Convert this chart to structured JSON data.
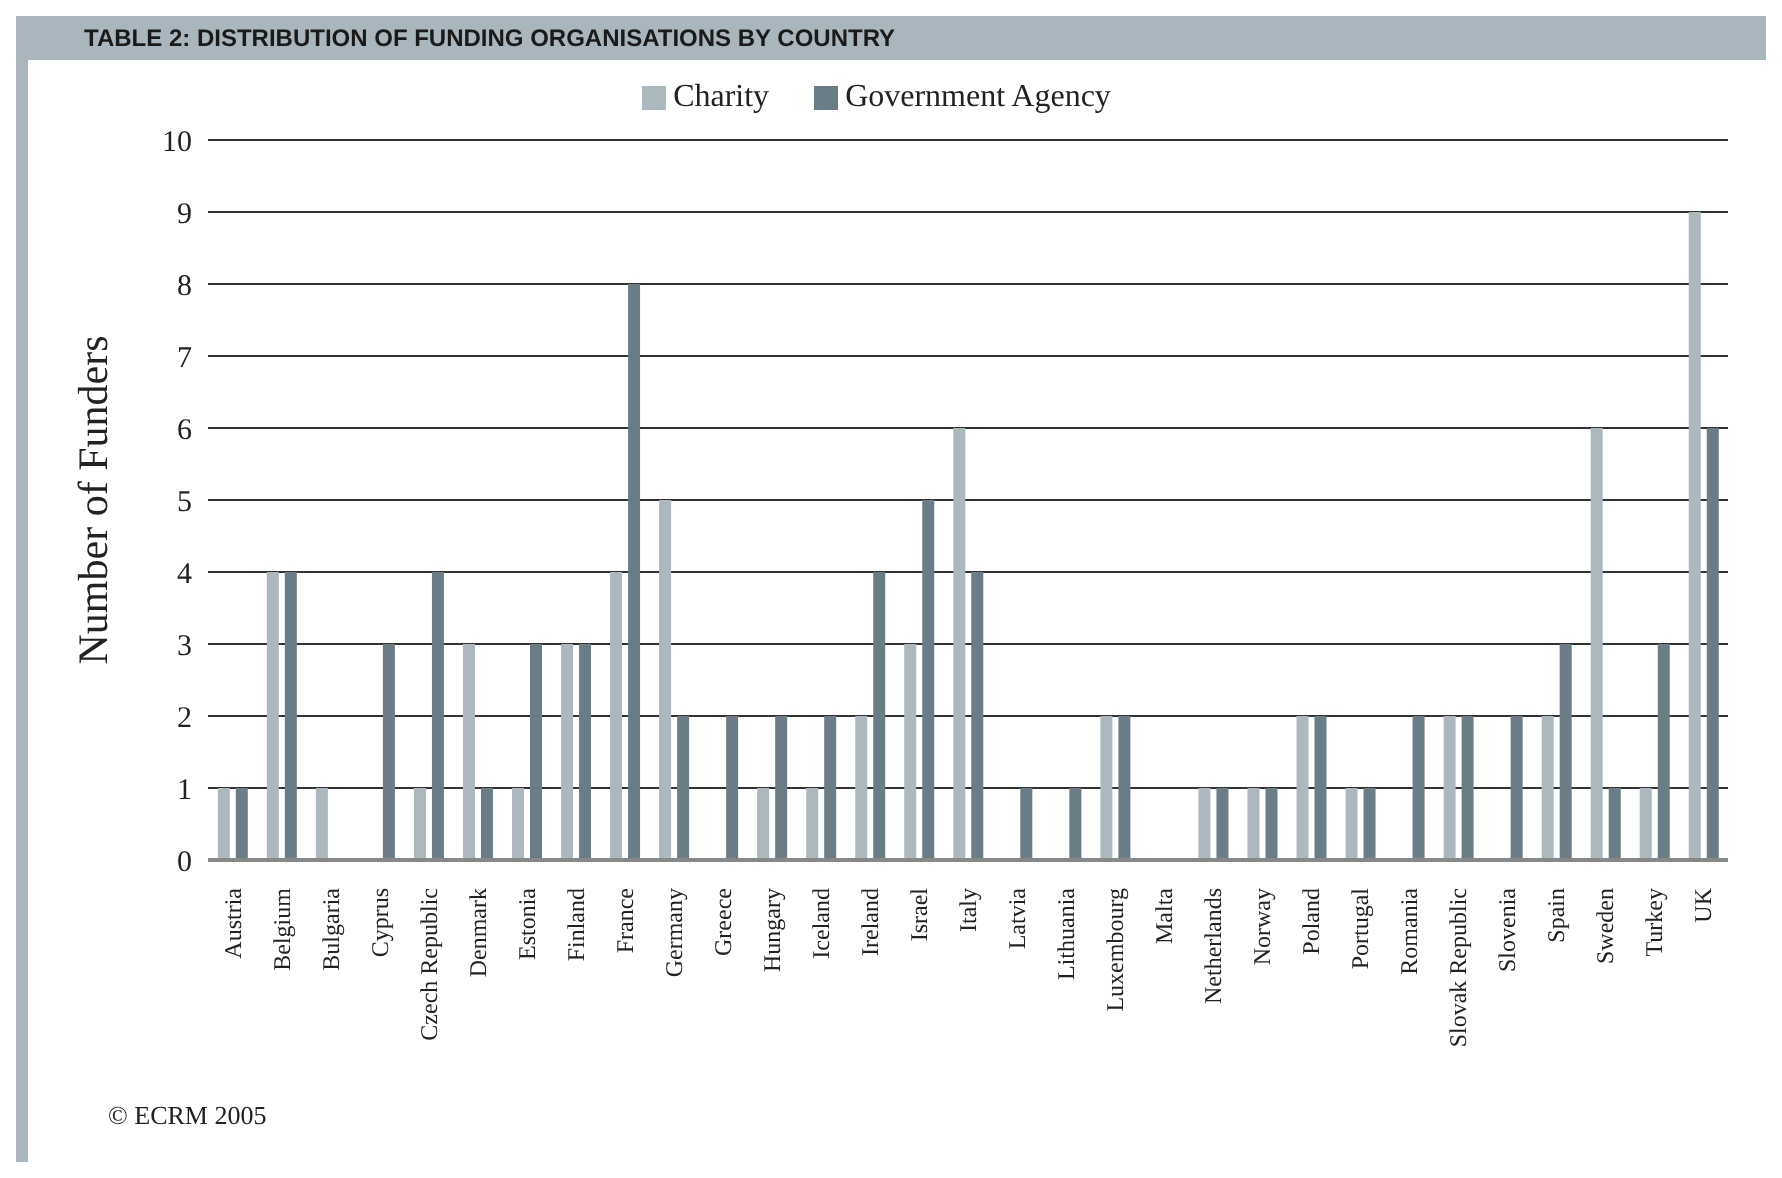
{
  "chart_data": {
    "type": "bar",
    "title": "TABLE 2: DISTRIBUTION OF FUNDING ORGANISATIONS BY COUNTRY",
    "ylabel": "Number of Funders",
    "categories": [
      "Austria",
      "Belgium",
      "Bulgaria",
      "Cyprus",
      "Czech Republic",
      "Denmark",
      "Estonia",
      "Finland",
      "France",
      "Germany",
      "Greece",
      "Hungary",
      "Iceland",
      "Ireland",
      "Israel",
      "Italy",
      "Latvia",
      "Lithuania",
      "Luxembourg",
      "Malta",
      "Netherlands",
      "Norway",
      "Poland",
      "Portugal",
      "Romania",
      "Slovak Republic",
      "Slovenia",
      "Spain",
      "Sweden",
      "Turkey",
      "UK"
    ],
    "series": [
      {
        "name": "Charity",
        "color": "#abb8be",
        "values": [
          1,
          4,
          1,
          0,
          1,
          3,
          1,
          3,
          4,
          5,
          0,
          1,
          1,
          2,
          3,
          6,
          0,
          0,
          2,
          0,
          1,
          1,
          2,
          1,
          0,
          2,
          0,
          2,
          6,
          1,
          9
        ]
      },
      {
        "name": "Government Agency",
        "color": "#6a7d86",
        "values": [
          1,
          4,
          0,
          3,
          4,
          1,
          3,
          3,
          8,
          2,
          2,
          2,
          2,
          4,
          5,
          4,
          1,
          1,
          2,
          0,
          1,
          1,
          2,
          1,
          2,
          2,
          2,
          3,
          1,
          3,
          6
        ]
      }
    ],
    "ylim": [
      0,
      10
    ],
    "yticks": [
      0,
      1,
      2,
      3,
      4,
      5,
      6,
      7,
      8,
      9,
      10
    ],
    "grid": "y",
    "legend": "top",
    "annotations": [
      "© ECRM 2005"
    ]
  }
}
